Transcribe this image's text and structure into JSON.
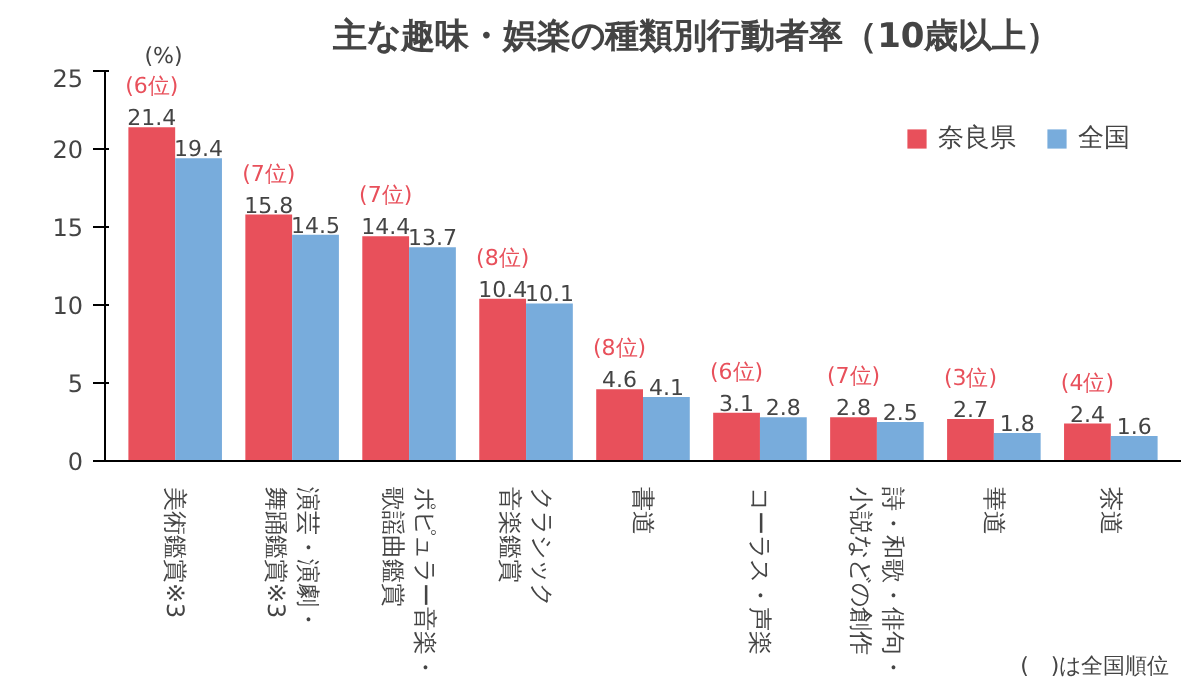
{
  "chart_data": {
    "type": "bar",
    "title": "主な趣味・娯楽の種類別行動者率（10歳以上）",
    "ylabel": "(%)",
    "categories": [
      "美術鑑賞※3",
      "演芸・演劇・舞踊鑑賞※3",
      "ポピュラー音楽・歌謡曲鑑賞",
      "クラシック音楽鑑賞",
      "書道",
      "コーラス・声楽",
      "詩・和歌・俳句・小説などの創作",
      "華道",
      "茶道"
    ],
    "series": [
      {
        "name": "奈良県",
        "color": "#e8505b",
        "values": [
          21.4,
          15.8,
          14.4,
          10.4,
          4.6,
          3.1,
          2.8,
          2.7,
          2.4
        ]
      },
      {
        "name": "全国",
        "color": "#78acdc",
        "values": [
          19.4,
          14.5,
          13.7,
          10.1,
          4.1,
          2.8,
          2.5,
          1.8,
          1.6
        ]
      }
    ],
    "ylim": [
      0,
      25
    ],
    "yticks": [
      0,
      5,
      10,
      15,
      20,
      25
    ],
    "grid": false,
    "legend": "top right",
    "data_labels": true,
    "annotations": [
      {
        "text": "(6位)",
        "x": "美術鑑賞※3",
        "y": 21.4
      },
      {
        "text": "(7位)",
        "x": "演芸・演劇・舞踊鑑賞※3",
        "y": 15.8
      },
      {
        "text": "(7位)",
        "x": "ポピュラー音楽・歌謡曲鑑賞",
        "y": 14.4
      },
      {
        "text": "(8位)",
        "x": "クラシック音楽鑑賞",
        "y": 10.4
      },
      {
        "text": "(8位)",
        "x": "書道",
        "y": 4.6
      },
      {
        "text": "(6位)",
        "x": "コーラス・声楽",
        "y": 3.1
      },
      {
        "text": "(7位)",
        "x": "詩・和歌・俳句・小説などの創作",
        "y": 2.8
      },
      {
        "text": "(3位)",
        "x": "華道",
        "y": 2.7
      },
      {
        "text": "(4位)",
        "x": "茶道",
        "y": 2.4
      },
      "(　)は全国順位"
    ]
  }
}
